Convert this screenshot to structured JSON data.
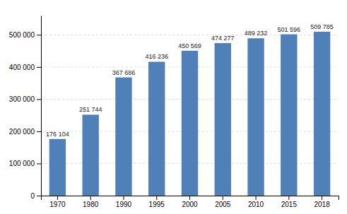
{
  "chart_data": {
    "type": "bar",
    "categories": [
      "1970",
      "1980",
      "1990",
      "1995",
      "2000",
      "2005",
      "2010",
      "2015",
      "2018"
    ],
    "values": [
      176104,
      251744,
      367686,
      416236,
      450569,
      474277,
      489232,
      501596,
      509785
    ],
    "value_labels": [
      "176 104",
      "251 744",
      "367 686",
      "416 236",
      "450 569",
      "474 277",
      "489 232",
      "501 596",
      "509 785"
    ],
    "data_labels": true,
    "color": "#5080b8",
    "ylim": [
      0,
      560000
    ],
    "yticks": [
      0,
      {
        "value": 100000,
        "label": "100 000"
      },
      {
        "value": 200000,
        "label": "200 000"
      },
      {
        "value": 300000,
        "label": "300 000"
      },
      {
        "value": 400000,
        "label": "400 000"
      },
      {
        "value": 500000,
        "label": "500 000"
      }
    ],
    "grid": true
  }
}
